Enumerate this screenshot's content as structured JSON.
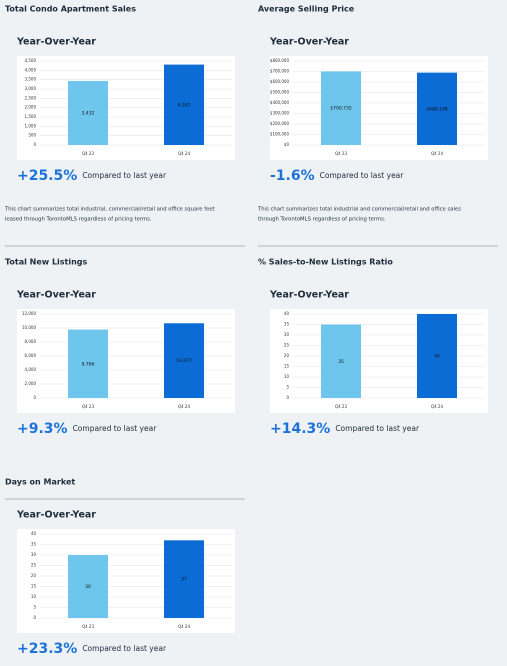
{
  "chart_data": [
    {
      "type": "bar",
      "title": "Total Condo Apartment Sales",
      "subtitle": "Year-Over-Year",
      "categories": [
        "Q4 23",
        "Q4 24"
      ],
      "values": [
        3432,
        4307
      ],
      "value_labels": [
        "3,432",
        "4,307"
      ],
      "colors": [
        "#6ec6ec",
        "#0b6cd6"
      ],
      "ylim": [
        0,
        4500
      ],
      "yticks": [
        0,
        {
          "value": 500,
          "label": "500"
        },
        {
          "value": 1000,
          "label": "1,000"
        },
        {
          "value": 1500,
          "label": "1,500"
        },
        {
          "value": 2000,
          "label": "2,000"
        },
        {
          "value": 2500,
          "label": "2,500"
        },
        {
          "value": 3000,
          "label": "3,000"
        },
        {
          "value": 3500,
          "label": "3,500"
        },
        {
          "value": 4000,
          "label": "4,000"
        },
        {
          "value": 4500,
          "label": "4,500"
        }
      ],
      "grid": true,
      "change": "+25.5%",
      "change_note": "Compared to last year",
      "description": [
        "This chart summarizes total industrial, commercial/retail and office square feet",
        "leased through TorontoMLS regardless of pricing terms."
      ]
    },
    {
      "type": "bar",
      "title": "Average Selling Price",
      "subtitle": "Year-Over-Year",
      "categories": [
        "Q4 23",
        "Q4 24"
      ],
      "values": [
        700735,
        689198
      ],
      "value_labels": [
        "$700,735",
        "$689,198"
      ],
      "colors": [
        "#6ec6ec",
        "#0b6cd6"
      ],
      "ylim": [
        0,
        800000
      ],
      "yticks": [
        {
          "value": 0,
          "label": "$0"
        },
        {
          "value": 100000,
          "label": "$100,000"
        },
        {
          "value": 200000,
          "label": "$200,000"
        },
        {
          "value": 300000,
          "label": "$300,000"
        },
        {
          "value": 400000,
          "label": "$400,000"
        },
        {
          "value": 500000,
          "label": "$500,000"
        },
        {
          "value": 600000,
          "label": "$600,000"
        },
        {
          "value": 700000,
          "label": "$700,000"
        },
        {
          "value": 800000,
          "label": "$800,000"
        }
      ],
      "grid": true,
      "change": "-1.6%",
      "change_note": "Compared to last year",
      "description": [
        "This chart summarizes total industrial and commercial/retail and office sales",
        "through TorontoMLS regardless of pricing terms."
      ]
    },
    {
      "type": "bar",
      "title": "Total New Listings",
      "subtitle": "Year-Over-Year",
      "categories": [
        "Q4 23",
        "Q4 24"
      ],
      "values": [
        9766,
        10677
      ],
      "value_labels": [
        "9,766",
        "10,677"
      ],
      "colors": [
        "#6ec6ec",
        "#0b6cd6"
      ],
      "ylim": [
        0,
        12000
      ],
      "yticks": [
        0,
        {
          "value": 2000,
          "label": "2,000"
        },
        {
          "value": 4000,
          "label": "4,000"
        },
        {
          "value": 6000,
          "label": "6,000"
        },
        {
          "value": 8000,
          "label": "8,000"
        },
        {
          "value": 10000,
          "label": "10,000"
        },
        {
          "value": 12000,
          "label": "12,000"
        }
      ],
      "grid": true,
      "change": "+9.3%",
      "change_note": "Compared to last year"
    },
    {
      "type": "bar",
      "title": "% Sales-to-New Listings Ratio",
      "subtitle": "Year-Over-Year",
      "categories": [
        "Q4 23",
        "Q4 24"
      ],
      "values": [
        35,
        40
      ],
      "colors": [
        "#6ec6ec",
        "#0b6cd6"
      ],
      "ylim": [
        0,
        40
      ],
      "yticks": [
        0,
        5,
        10,
        15,
        20,
        25,
        30,
        35,
        40
      ],
      "grid": true,
      "change": "+14.3%",
      "change_note": "Compared to last year"
    },
    {
      "type": "bar",
      "title": "Days on Market",
      "subtitle": "Year-Over-Year",
      "categories": [
        "Q4 23",
        "Q4 24"
      ],
      "values": [
        30,
        37
      ],
      "colors": [
        "#6ec6ec",
        "#0b6cd6"
      ],
      "ylim": [
        0,
        40
      ],
      "yticks": [
        0,
        5,
        10,
        15,
        20,
        25,
        30,
        35,
        40
      ],
      "grid": true,
      "change": "+23.3%",
      "change_note": "Compared to last year"
    }
  ]
}
